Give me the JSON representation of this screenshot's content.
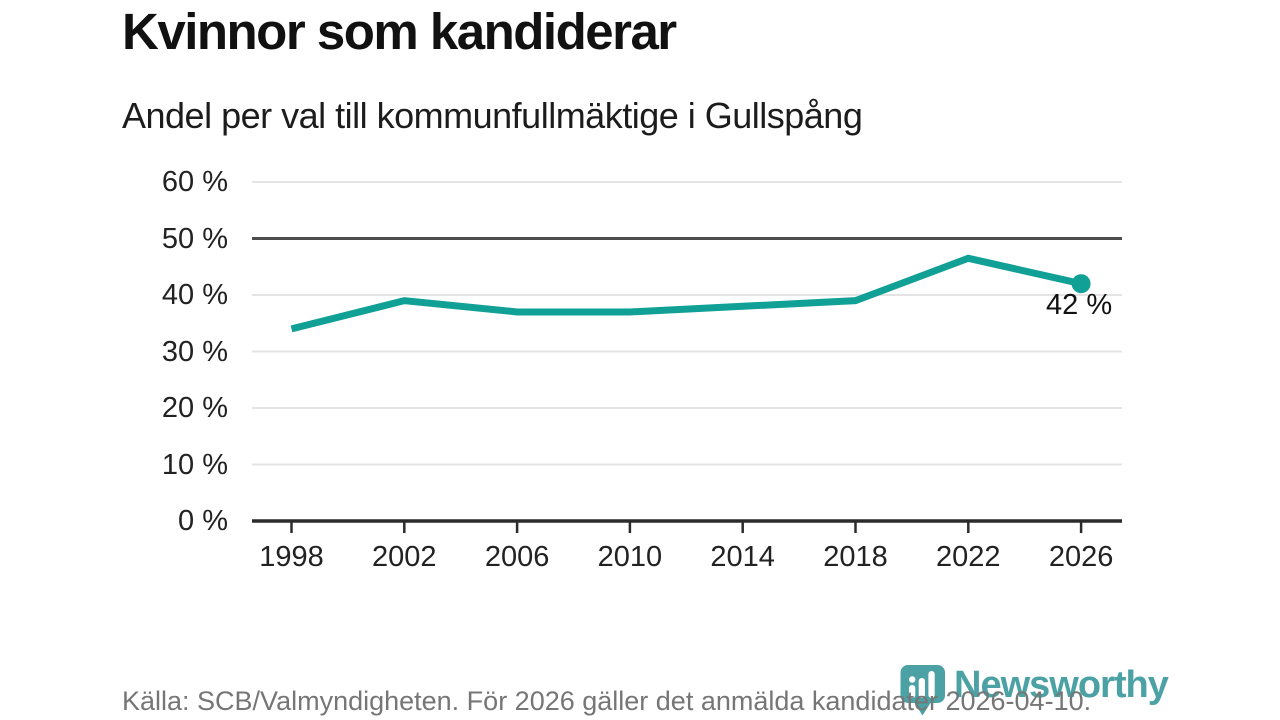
{
  "header": {
    "title": "Kvinnor som kandiderar",
    "subtitle": "Andel per val till kommunfullmäktige i Gullspång"
  },
  "chart_data": {
    "type": "line",
    "title": "Kvinnor som kandiderar",
    "subtitle": "Andel per val till kommunfullmäktige i Gullspång",
    "categories": [
      "1998",
      "2002",
      "2006",
      "2010",
      "2014",
      "2018",
      "2022",
      "2026"
    ],
    "values": [
      34,
      39,
      37,
      37,
      38,
      39,
      46.5,
      42
    ],
    "unit": "%",
    "ylim": [
      0,
      60
    ],
    "y_tick_step": 10,
    "y_tick_labels": [
      "0 %",
      "10 %",
      "20 %",
      "30 %",
      "40 %",
      "50 %",
      "60 %"
    ],
    "highlighted_gridline": 50,
    "end_label": "42 %",
    "grid": true,
    "legend": "none",
    "line_color": "#10a096",
    "grid_color": "#e4e4e4",
    "highlight_grid_color": "#4d4d4d",
    "axis_color": "#2b2b2b"
  },
  "footer": {
    "source": "Källa: SCB/Valmyndigheten. För 2026 gäller det anmälda kandidater 2026-04-10."
  },
  "logo": {
    "text": "Newsworthy",
    "color": "#4ba1a3",
    "icon": "newsworthy-pin-barchart-icon"
  }
}
